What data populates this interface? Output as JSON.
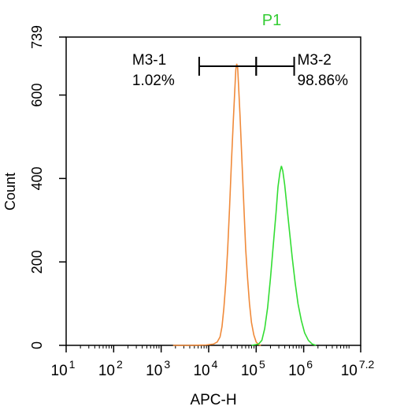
{
  "chart_data": {
    "type": "line",
    "title": "P1",
    "title_color": "#33cc33",
    "xlabel": "APC-H",
    "ylabel": "Count",
    "x_scale": "log",
    "xlim_exponent": [
      1,
      7.2
    ],
    "ylim": [
      0,
      739
    ],
    "x_ticks": [
      {
        "base": "10",
        "exp": "1",
        "value": 1
      },
      {
        "base": "10",
        "exp": "2",
        "value": 2
      },
      {
        "base": "10",
        "exp": "3",
        "value": 3
      },
      {
        "base": "10",
        "exp": "4",
        "value": 4
      },
      {
        "base": "10",
        "exp": "5",
        "value": 5
      },
      {
        "base": "10",
        "exp": "6",
        "value": 6
      },
      {
        "base": "10",
        "exp": "7.2",
        "value": 7.2
      }
    ],
    "y_ticks": [
      {
        "label": "0",
        "value": 0
      },
      {
        "label": "200",
        "value": 200
      },
      {
        "label": "400",
        "value": 400
      },
      {
        "label": "600",
        "value": 600
      },
      {
        "label": "739",
        "value": 739
      }
    ],
    "gates": [
      {
        "name": "M3-1",
        "percent": "1.02%",
        "start_exp": 3.8,
        "end_exp": 5.0
      },
      {
        "name": "M3-2",
        "percent": "98.86%",
        "start_exp": 5.0,
        "end_exp": 5.8
      }
    ],
    "gate_y": 669,
    "series": [
      {
        "color": "#f08a3a",
        "points": [
          [
            3.25,
            0
          ],
          [
            3.6,
            0
          ],
          [
            3.95,
            1
          ],
          [
            4.1,
            3
          ],
          [
            4.18,
            8
          ],
          [
            4.24,
            20
          ],
          [
            4.28,
            45
          ],
          [
            4.32,
            90
          ],
          [
            4.36,
            150
          ],
          [
            4.4,
            230
          ],
          [
            4.44,
            330
          ],
          [
            4.48,
            440
          ],
          [
            4.52,
            540
          ],
          [
            4.55,
            610
          ],
          [
            4.57,
            660
          ],
          [
            4.59,
            675
          ],
          [
            4.61,
            665
          ],
          [
            4.63,
            620
          ],
          [
            4.66,
            550
          ],
          [
            4.69,
            470
          ],
          [
            4.72,
            390
          ],
          [
            4.75,
            310
          ],
          [
            4.78,
            230
          ],
          [
            4.82,
            160
          ],
          [
            4.86,
            100
          ],
          [
            4.9,
            55
          ],
          [
            4.95,
            25
          ],
          [
            5.0,
            8
          ],
          [
            5.05,
            2
          ],
          [
            5.1,
            0
          ]
        ]
      },
      {
        "color": "#33dd33",
        "points": [
          [
            4.9,
            0
          ],
          [
            5.05,
            3
          ],
          [
            5.12,
            12
          ],
          [
            5.18,
            40
          ],
          [
            5.24,
            90
          ],
          [
            5.3,
            160
          ],
          [
            5.36,
            240
          ],
          [
            5.42,
            320
          ],
          [
            5.46,
            380
          ],
          [
            5.5,
            415
          ],
          [
            5.53,
            430
          ],
          [
            5.56,
            418
          ],
          [
            5.6,
            385
          ],
          [
            5.65,
            330
          ],
          [
            5.7,
            275
          ],
          [
            5.76,
            210
          ],
          [
            5.82,
            150
          ],
          [
            5.88,
            100
          ],
          [
            5.95,
            60
          ],
          [
            6.02,
            30
          ],
          [
            6.1,
            12
          ],
          [
            6.18,
            3
          ],
          [
            6.26,
            0
          ]
        ]
      }
    ]
  }
}
